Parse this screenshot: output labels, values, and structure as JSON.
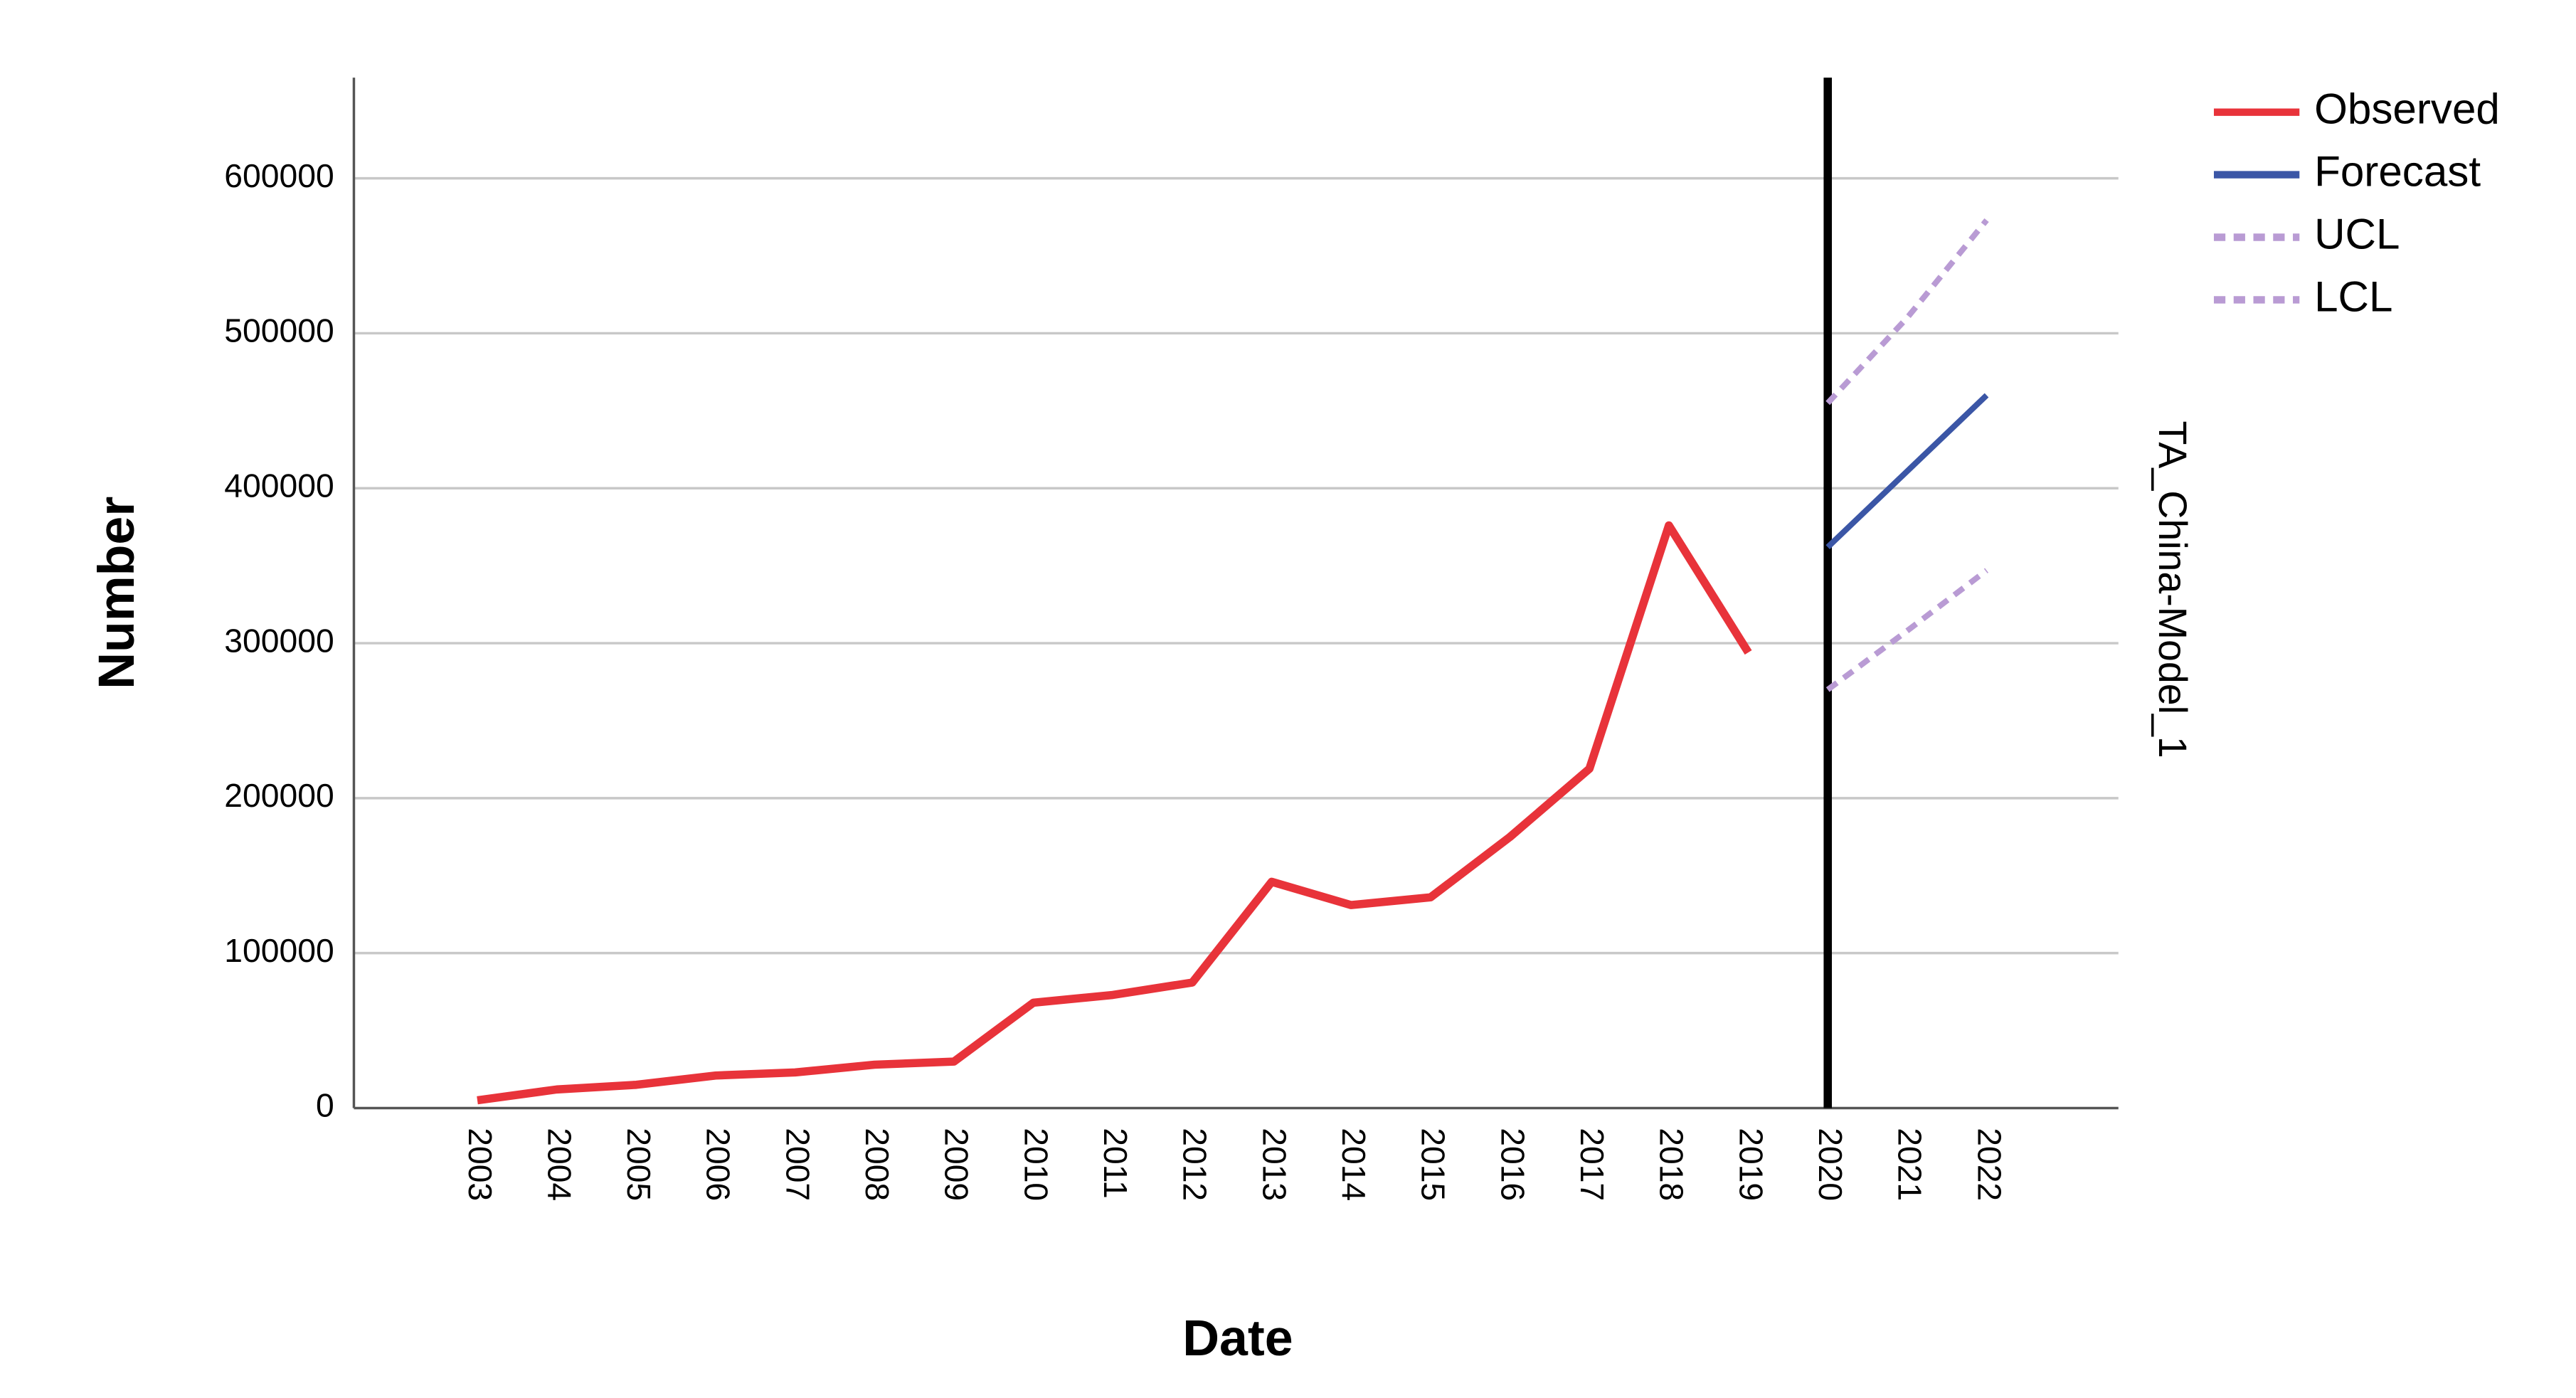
{
  "chart_data": {
    "type": "line",
    "x_label": "Date",
    "y_label": "Number",
    "side_label": "TA_China-Model_1",
    "categories": [
      "2003",
      "2004",
      "2005",
      "2006",
      "2007",
      "2008",
      "2009",
      "2010",
      "2011",
      "2012",
      "2013",
      "2014",
      "2015",
      "2016",
      "2017",
      "2018",
      "2019",
      "2020",
      "2021",
      "2022"
    ],
    "series": [
      {
        "name": "Observed",
        "color": "#e8333a",
        "dashed": false,
        "values": [
          5000,
          12000,
          15000,
          21000,
          23000,
          28000,
          30000,
          68000,
          73000,
          81000,
          146000,
          131000,
          136000,
          175000,
          219000,
          376000,
          294000,
          null,
          null,
          null
        ]
      },
      {
        "name": "Forecast",
        "color": "#3b56a6",
        "dashed": false,
        "values": [
          null,
          null,
          null,
          null,
          null,
          null,
          null,
          null,
          null,
          null,
          null,
          null,
          null,
          null,
          null,
          null,
          null,
          362000,
          411000,
          460000
        ]
      },
      {
        "name": "UCL",
        "color": "#b99bd4",
        "dashed": true,
        "values": [
          null,
          null,
          null,
          null,
          null,
          null,
          null,
          null,
          null,
          null,
          null,
          null,
          null,
          null,
          null,
          null,
          null,
          455000,
          510000,
          573000
        ]
      },
      {
        "name": "LCL",
        "color": "#b99bd4",
        "dashed": true,
        "values": [
          null,
          null,
          null,
          null,
          null,
          null,
          null,
          null,
          null,
          null,
          null,
          null,
          null,
          null,
          null,
          null,
          null,
          270000,
          308000,
          347000
        ]
      }
    ],
    "reference_category": "2020",
    "ylim": [
      0,
      665000
    ],
    "yticks": [
      0,
      100000,
      200000,
      300000,
      400000,
      500000,
      600000
    ],
    "grid": true,
    "legend": "right"
  }
}
